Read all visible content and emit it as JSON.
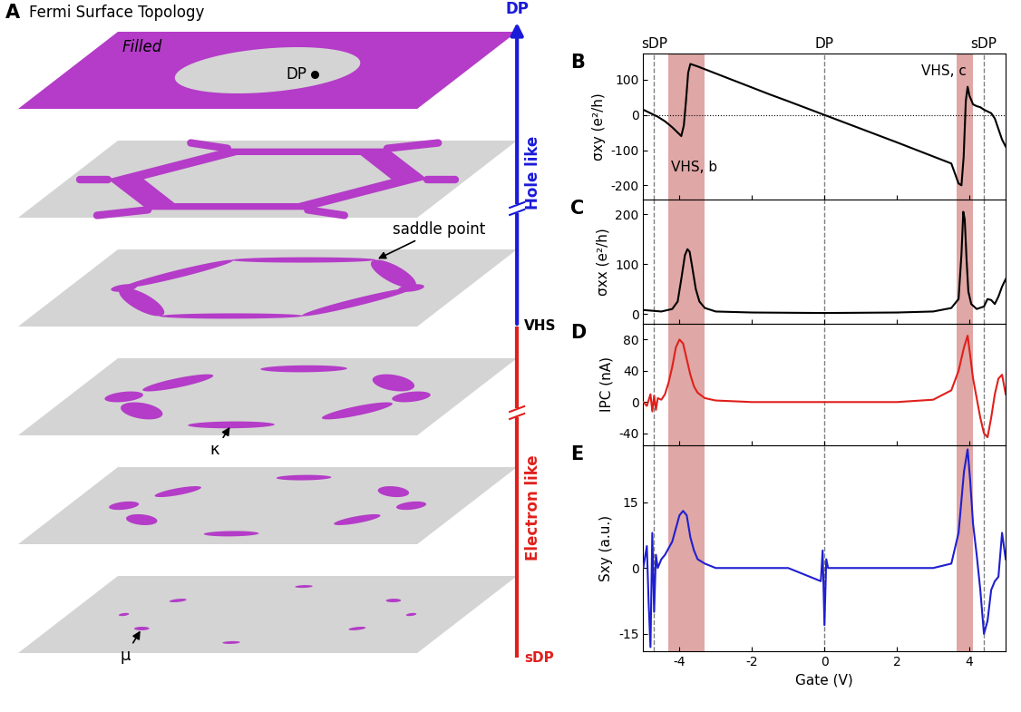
{
  "panel_a": {
    "label": "A",
    "title": "Fermi Surface Topology",
    "layers": [
      [
        "Filled",
        "DP"
      ],
      [],
      [
        "saddle point"
      ],
      [
        "κ"
      ],
      [],
      [
        "μ"
      ]
    ],
    "scale": {
      "top": "DP",
      "upper": "Hole like",
      "middle": "VHS",
      "lower": "Electron like",
      "bottom": "sDP"
    }
  },
  "chart_data": [
    {
      "type": "line",
      "panel": "B",
      "ylabel": "σxy (e²/h)",
      "color": "#000000",
      "x": [
        -5.0,
        -4.8,
        -4.6,
        -4.4,
        -4.2,
        -4.05,
        -3.95,
        -3.88,
        -3.82,
        -3.76,
        -3.7,
        -3.5,
        -3.0,
        -2.0,
        -1.5,
        -1.0,
        0.0,
        1.0,
        2.0,
        3.0,
        3.5,
        3.7,
        3.78,
        3.84,
        3.9,
        3.95,
        4.0,
        4.1,
        4.2,
        4.3,
        4.4,
        4.5,
        4.6,
        4.7,
        4.8,
        4.9,
        5.0
      ],
      "values": [
        15,
        5,
        -5,
        -18,
        -35,
        -50,
        -60,
        -30,
        40,
        120,
        145,
        138,
        118,
        78,
        58,
        39,
        0,
        -39,
        -78,
        -118,
        -138,
        -195,
        -200,
        -120,
        40,
        80,
        55,
        30,
        25,
        22,
        15,
        10,
        5,
        -10,
        -40,
        -70,
        -90
      ],
      "xlim": [
        -5,
        5
      ],
      "xticks": [
        -4,
        -2,
        0,
        2,
        4
      ],
      "ylim": [
        -240,
        175
      ],
      "yticks": [
        -200,
        -100,
        0,
        100
      ],
      "tick_labels": "y",
      "vlines": [
        {
          "x": -4.7,
          "label": "sDP"
        },
        {
          "x": 0,
          "label": "DP"
        },
        {
          "x": 4.4,
          "label": "sDP"
        }
      ],
      "hlines": [
        0
      ],
      "highlights": [
        [
          -4.3,
          -3.3
        ],
        [
          3.65,
          4.1
        ]
      ],
      "annotations": [
        {
          "text": "VHS, b",
          "x": -3.6,
          "y": -150
        },
        {
          "text": "VHS, c",
          "x": 3.3,
          "y": 125
        }
      ]
    },
    {
      "type": "line",
      "panel": "C",
      "ylabel": "σxx (e²/h)",
      "color": "#000000",
      "x": [
        -5.0,
        -4.5,
        -4.2,
        -4.05,
        -3.95,
        -3.85,
        -3.78,
        -3.72,
        -3.65,
        -3.55,
        -3.45,
        -3.3,
        -3.0,
        -2.0,
        0.0,
        2.0,
        3.0,
        3.5,
        3.7,
        3.78,
        3.83,
        3.87,
        3.92,
        3.97,
        4.05,
        4.2,
        4.4,
        4.5,
        4.6,
        4.7,
        4.8,
        4.9,
        5.0
      ],
      "values": [
        8,
        5,
        10,
        25,
        70,
        118,
        130,
        125,
        95,
        50,
        25,
        12,
        5,
        3,
        2,
        3,
        5,
        12,
        30,
        120,
        205,
        190,
        110,
        45,
        20,
        10,
        15,
        30,
        28,
        20,
        35,
        55,
        70
      ],
      "xlim": [
        -5,
        5
      ],
      "xticks": [
        -4,
        -2,
        0,
        2,
        4
      ],
      "ylim": [
        -20,
        230
      ],
      "yticks": [
        0,
        100,
        200
      ],
      "tick_labels": "y",
      "vlines": [
        -4.7,
        0,
        4.4
      ],
      "highlights": [
        [
          -4.3,
          -3.3
        ],
        [
          3.65,
          4.1
        ]
      ]
    },
    {
      "type": "line",
      "panel": "D",
      "ylabel": "IPC (nA)",
      "color": "#e0201c",
      "x": [
        -5.0,
        -4.9,
        -4.8,
        -4.75,
        -4.7,
        -4.65,
        -4.6,
        -4.5,
        -4.4,
        -4.3,
        -4.2,
        -4.1,
        -4.0,
        -3.9,
        -3.8,
        -3.7,
        -3.6,
        -3.5,
        -3.3,
        -3.0,
        -2.0,
        -1.0,
        0.0,
        1.0,
        2.0,
        3.0,
        3.5,
        3.7,
        3.85,
        3.95,
        4.02,
        4.1,
        4.2,
        4.3,
        4.4,
        4.5,
        4.6,
        4.7,
        4.8,
        4.9,
        5.0
      ],
      "values": [
        0,
        -5,
        10,
        -12,
        8,
        -10,
        5,
        3,
        10,
        25,
        45,
        70,
        80,
        75,
        55,
        35,
        20,
        12,
        5,
        2,
        0,
        0,
        0,
        0,
        0,
        3,
        15,
        40,
        70,
        85,
        60,
        30,
        5,
        -20,
        -40,
        -45,
        -20,
        10,
        30,
        35,
        10
      ],
      "xlim": [
        -5,
        5
      ],
      "xticks": [
        -4,
        -2,
        0,
        2,
        4
      ],
      "ylim": [
        -55,
        100
      ],
      "yticks": [
        -40,
        0,
        40,
        80
      ],
      "tick_labels": "y",
      "vlines": [
        -4.7,
        0,
        4.4
      ],
      "highlights": [
        [
          -4.3,
          -3.3
        ],
        [
          3.65,
          4.1
        ]
      ]
    },
    {
      "type": "line",
      "panel": "E",
      "ylabel": "Sxy (a.u.)",
      "xlabel": "Gate (V)",
      "color": "#1f1fd0",
      "x": [
        -5.0,
        -4.9,
        -4.85,
        -4.8,
        -4.75,
        -4.7,
        -4.65,
        -4.6,
        -4.5,
        -4.4,
        -4.2,
        -4.0,
        -3.9,
        -3.8,
        -3.7,
        -3.6,
        -3.5,
        -3.3,
        -3.0,
        -2.0,
        -1.0,
        -0.1,
        -0.05,
        0.0,
        0.05,
        0.1,
        1.0,
        2.0,
        3.0,
        3.5,
        3.7,
        3.85,
        3.95,
        4.02,
        4.1,
        4.2,
        4.3,
        4.4,
        4.5,
        4.6,
        4.7,
        4.8,
        4.9,
        5.0
      ],
      "values": [
        0,
        5,
        -8,
        -18,
        8,
        -10,
        3,
        0,
        2,
        3,
        6,
        12,
        13,
        12,
        7,
        4,
        2,
        1,
        0,
        0,
        0,
        -3,
        4,
        -13,
        2,
        0,
        0,
        0,
        0,
        1,
        8,
        22,
        27,
        20,
        10,
        3,
        -5,
        -15,
        -12,
        -5,
        -3,
        -2,
        8,
        2
      ],
      "xlim": [
        -5,
        5
      ],
      "xticks": [
        -4,
        -2,
        0,
        2,
        4
      ],
      "ylim": [
        -19,
        28
      ],
      "yticks": [
        -15,
        0,
        15
      ],
      "vlines": [
        -4.7,
        0,
        4.4
      ],
      "highlights": [
        [
          -4.3,
          -3.3
        ],
        [
          3.65,
          4.1
        ]
      ]
    }
  ]
}
